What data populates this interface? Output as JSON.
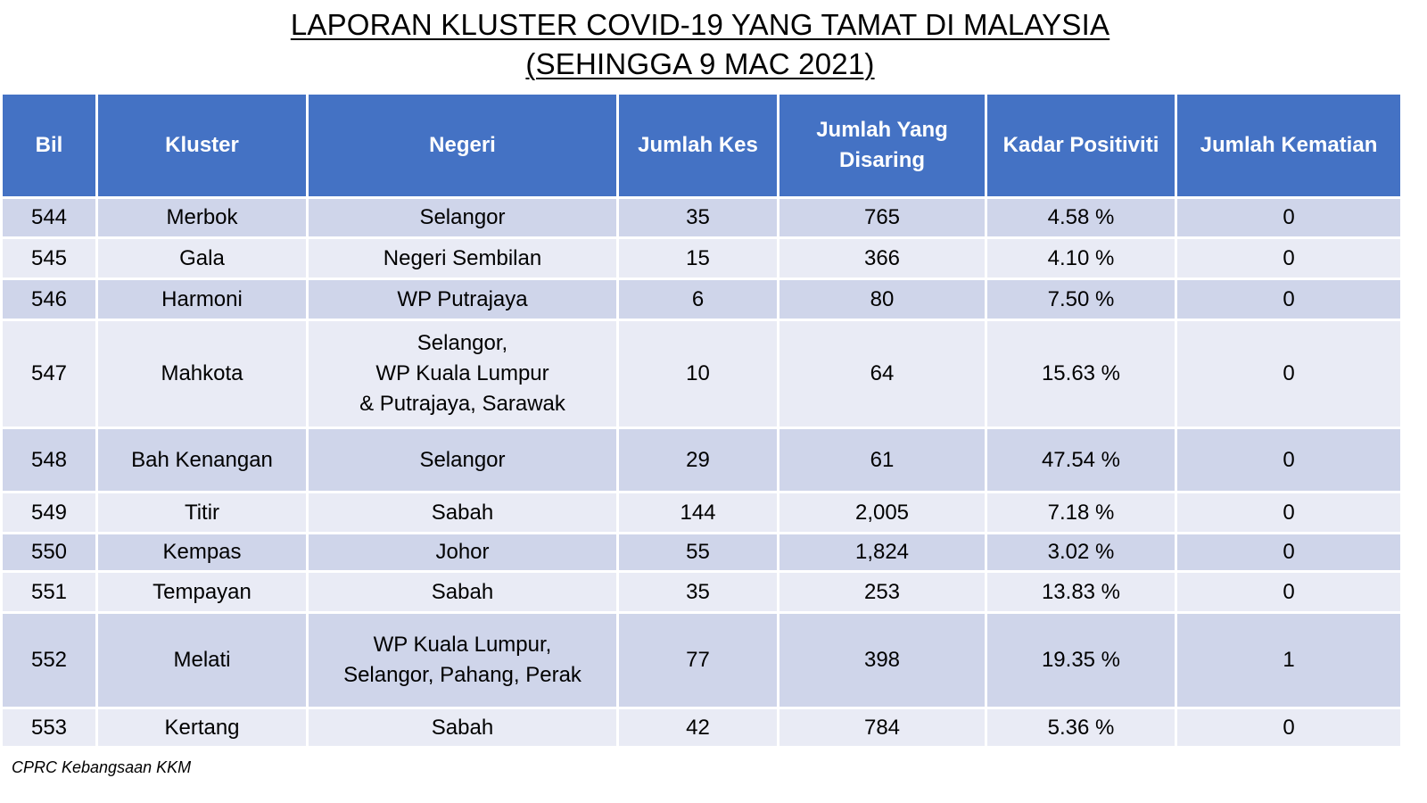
{
  "title": {
    "line1": "LAPORAN KLUSTER COVID-19 YANG TAMAT DI MALAYSIA",
    "line2": "(SEHINGGA 9 MAC 2021)"
  },
  "table": {
    "headers": {
      "bil": "Bil",
      "kluster": "Kluster",
      "negeri": "Negeri",
      "jumlah_kes": "Jumlah Kes",
      "jumlah_disaring_1": "Jumlah Yang",
      "jumlah_disaring_2": "Disaring",
      "kadar_positiviti": "Kadar Positiviti",
      "jumlah_kematian": "Jumlah Kematian"
    },
    "rows": [
      {
        "bil": "544",
        "kluster": "Merbok",
        "negeri": [
          "Selangor"
        ],
        "kes": "35",
        "disaring": "765",
        "positiviti": "4.58 %",
        "kematian": "0"
      },
      {
        "bil": "545",
        "kluster": "Gala",
        "negeri": [
          "Negeri Sembilan"
        ],
        "kes": "15",
        "disaring": "366",
        "positiviti": "4.10 %",
        "kematian": "0"
      },
      {
        "bil": "546",
        "kluster": "Harmoni",
        "negeri": [
          "WP Putrajaya"
        ],
        "kes": "6",
        "disaring": "80",
        "positiviti": "7.50 %",
        "kematian": "0"
      },
      {
        "bil": "547",
        "kluster": "Mahkota",
        "negeri": [
          "Selangor,",
          "WP Kuala Lumpur",
          "& Putrajaya, Sarawak"
        ],
        "kes": "10",
        "disaring": "64",
        "positiviti": "15.63 %",
        "kematian": "0"
      },
      {
        "bil": "548",
        "kluster": "Bah Kenangan",
        "negeri": [
          "Selangor"
        ],
        "kes": "29",
        "disaring": "61",
        "positiviti": "47.54 %",
        "kematian": "0"
      },
      {
        "bil": "549",
        "kluster": "Titir",
        "negeri": [
          "Sabah"
        ],
        "kes": "144",
        "disaring": "2,005",
        "positiviti": "7.18 %",
        "kematian": "0"
      },
      {
        "bil": "550",
        "kluster": "Kempas",
        "negeri": [
          "Johor"
        ],
        "kes": "55",
        "disaring": "1,824",
        "positiviti": "3.02 %",
        "kematian": "0"
      },
      {
        "bil": "551",
        "kluster": "Tempayan",
        "negeri": [
          "Sabah"
        ],
        "kes": "35",
        "disaring": "253",
        "positiviti": "13.83 %",
        "kematian": "0"
      },
      {
        "bil": "552",
        "kluster": "Melati",
        "negeri": [
          "WP Kuala Lumpur,",
          "Selangor, Pahang, Perak"
        ],
        "kes": "77",
        "disaring": "398",
        "positiviti": "19.35 %",
        "kematian": "1"
      },
      {
        "bil": "553",
        "kluster": "Kertang",
        "negeri": [
          "Sabah"
        ],
        "kes": "42",
        "disaring": "784",
        "positiviti": "5.36 %",
        "kematian": "0"
      }
    ]
  },
  "footer": {
    "source": "CPRC Kebangsaan KKM"
  },
  "colors": {
    "header_bg": "#4472c4",
    "row_dark": "#cfd5ea",
    "row_light": "#e9ebf5"
  }
}
